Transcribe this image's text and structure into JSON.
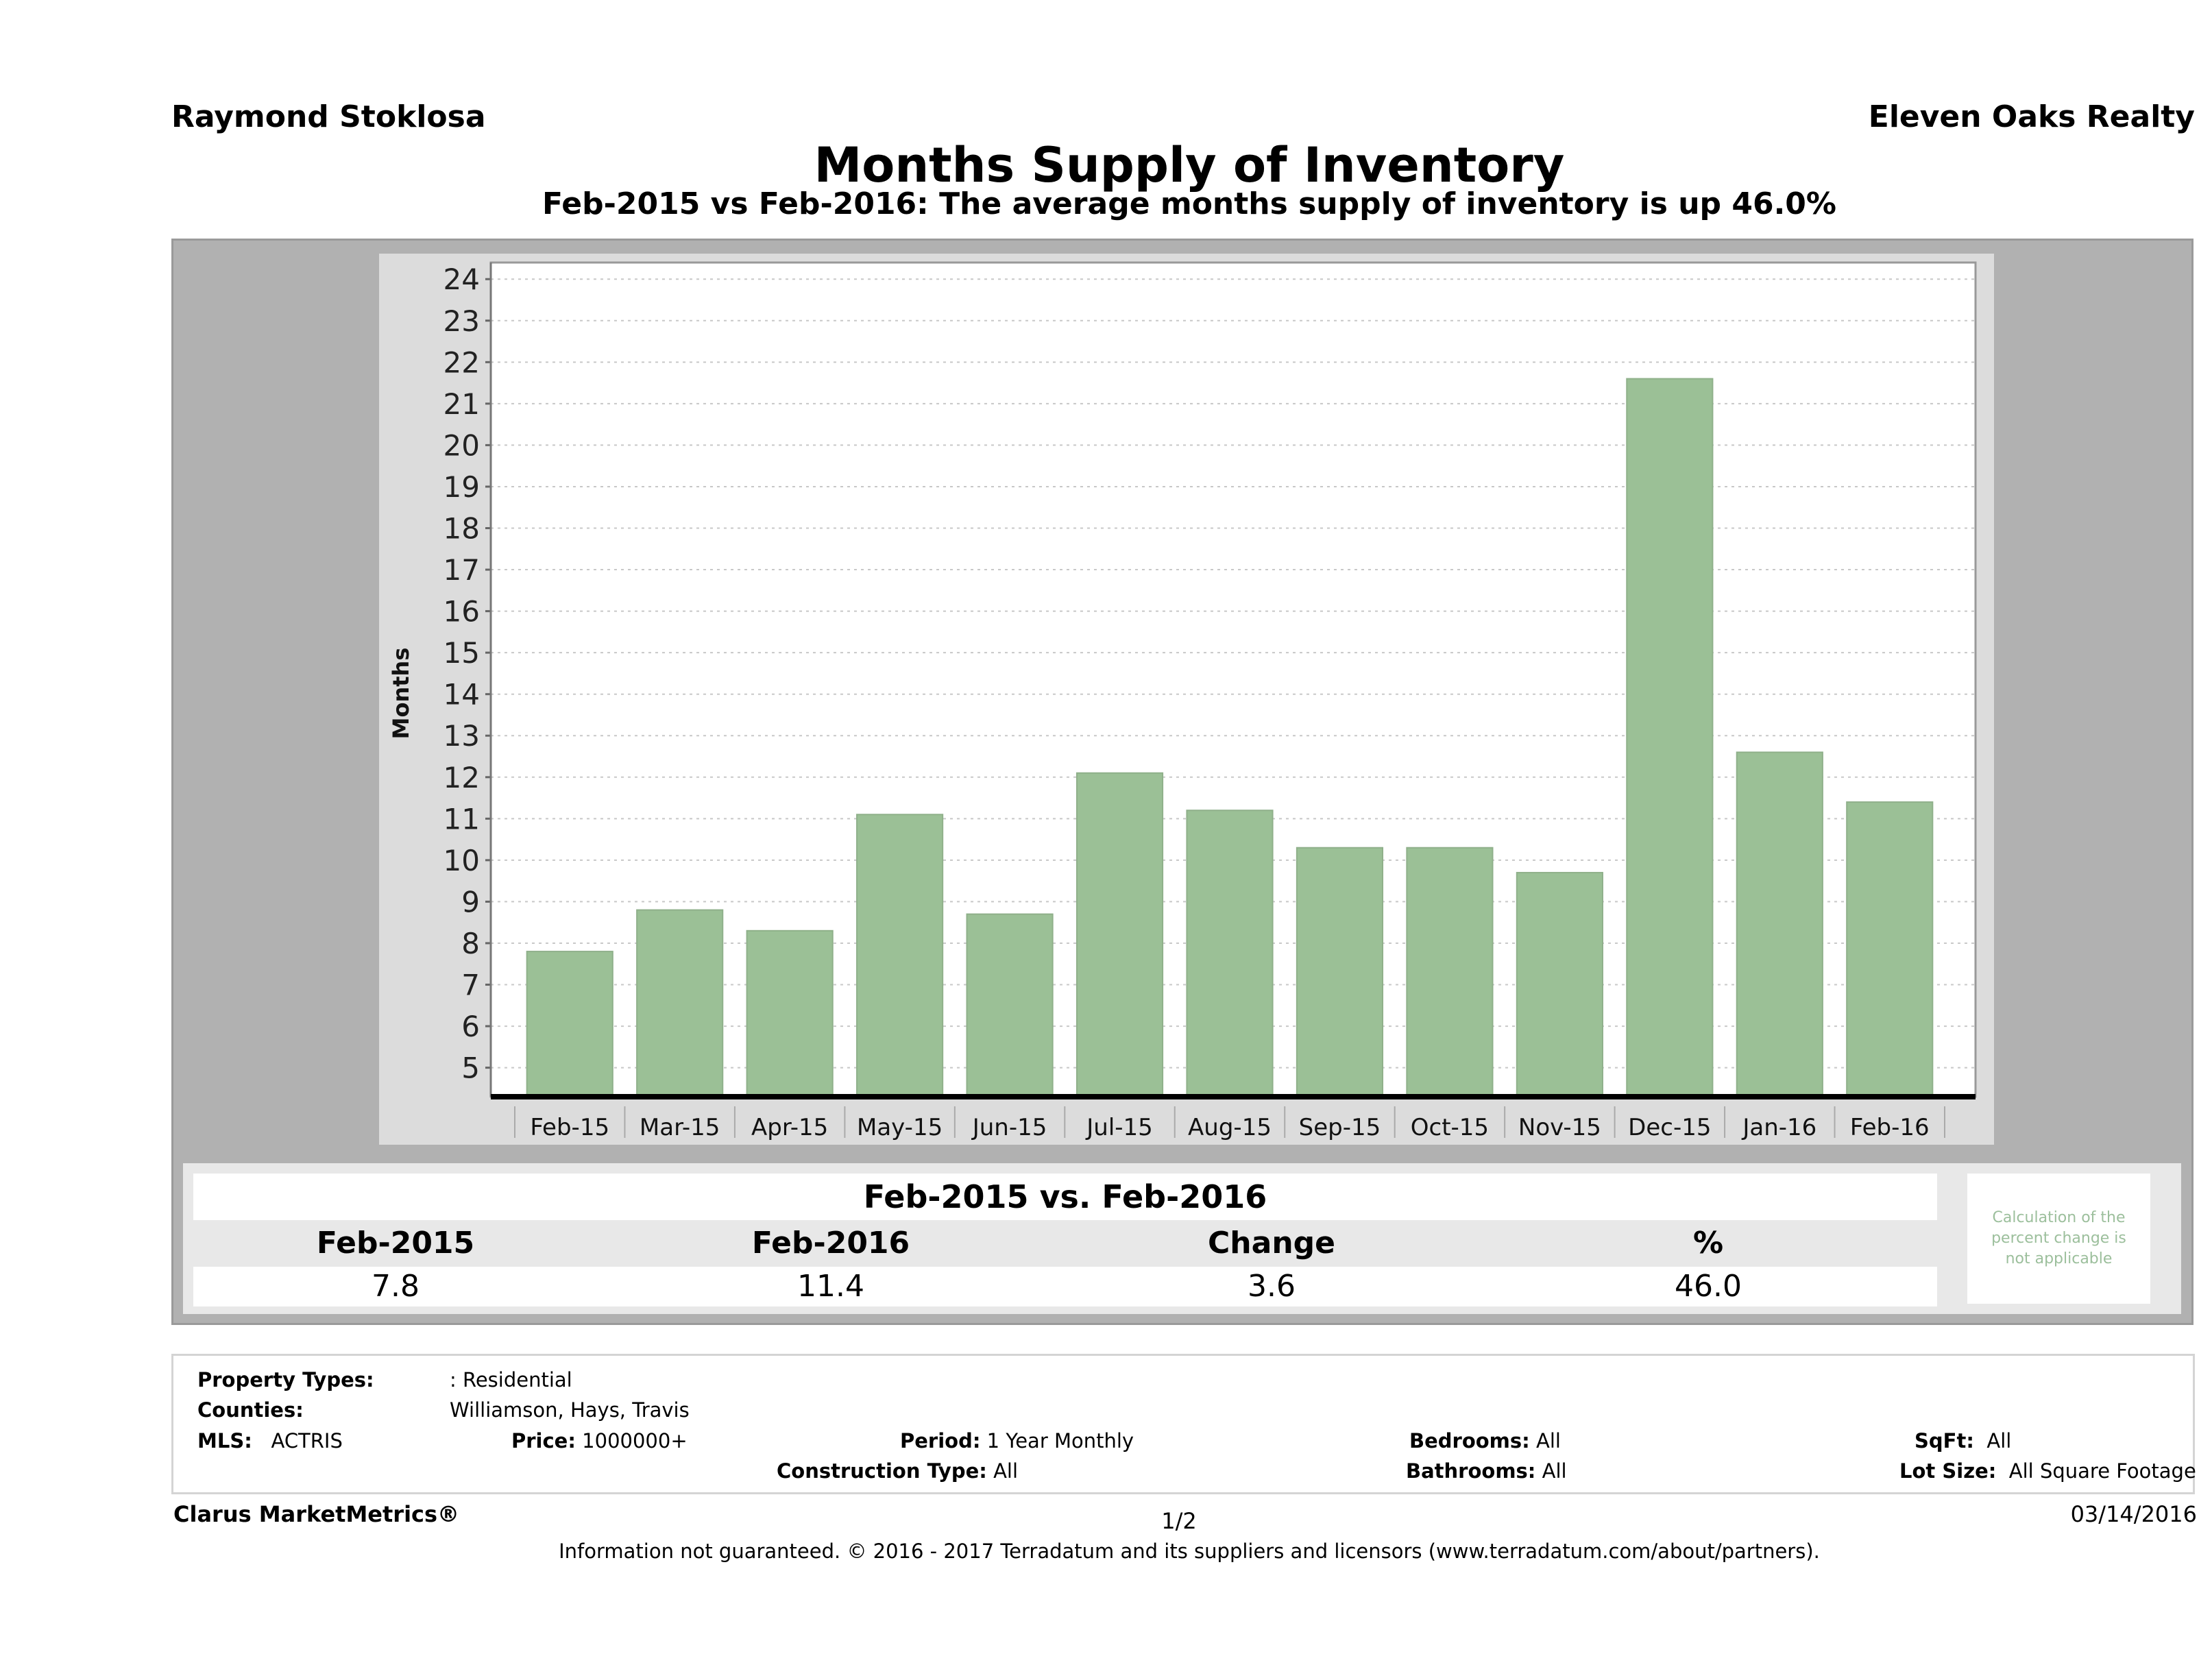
{
  "header": {
    "agent_name": "Raymond Stoklosa",
    "company_name": "Eleven Oaks Realty",
    "title": "Months Supply of Inventory",
    "subtitle": "Feb-2015 vs Feb-2016: The average months supply of inventory is up 46.0%"
  },
  "chart_data": {
    "type": "bar",
    "title": "Months Supply of Inventory",
    "xlabel": "",
    "ylabel": "Months",
    "categories": [
      "Feb-15",
      "Mar-15",
      "Apr-15",
      "May-15",
      "Jun-15",
      "Jul-15",
      "Aug-15",
      "Sep-15",
      "Oct-15",
      "Nov-15",
      "Dec-15",
      "Jan-16",
      "Feb-16"
    ],
    "values": [
      7.8,
      8.8,
      8.3,
      11.1,
      8.7,
      12.1,
      11.2,
      10.3,
      10.3,
      9.7,
      21.6,
      12.6,
      11.4
    ],
    "ylim": [
      4.3,
      24.4
    ],
    "yticks": [
      5,
      6,
      7,
      8,
      9,
      10,
      11,
      12,
      13,
      14,
      15,
      16,
      17,
      18,
      19,
      20,
      21,
      22,
      23,
      24
    ],
    "grid": true,
    "legend": "none",
    "bar_color": "#9bc096"
  },
  "comparison": {
    "title": "Feb-2015 vs. Feb-2016",
    "headers": [
      "Feb-2015",
      "Feb-2016",
      "Change",
      "%"
    ],
    "values": [
      "7.8",
      "11.4",
      "3.6",
      "46.0"
    ],
    "note": "Calculation of the percent change is not applicable"
  },
  "info": {
    "property_types_label": "Property Types:",
    "property_types_value": ": Residential",
    "counties_label": "Counties:",
    "counties_value": "Williamson, Hays, Travis",
    "mls_label": "MLS:",
    "mls_value": "ACTRIS",
    "price_label": "Price:",
    "price_value": "1000000+",
    "period_label": "Period:",
    "period_value": "1 Year Monthly",
    "construction_label": "Construction Type:",
    "construction_value": "All",
    "bedrooms_label": "Bedrooms:",
    "bedrooms_value": "All",
    "bathrooms_label": "Bathrooms:",
    "bathrooms_value": "All",
    "sqft_label": "SqFt:",
    "sqft_value": "All",
    "lotsize_label": "Lot Size:",
    "lotsize_value": "All Square Footage"
  },
  "footer": {
    "brand": "Clarus MarketMetrics®",
    "page": "1/2",
    "date": "03/14/2016",
    "disclaimer": "Information not guaranteed. © 2016 - 2017 Terradatum and its suppliers and licensors (www.terradatum.com/about/partners)."
  }
}
